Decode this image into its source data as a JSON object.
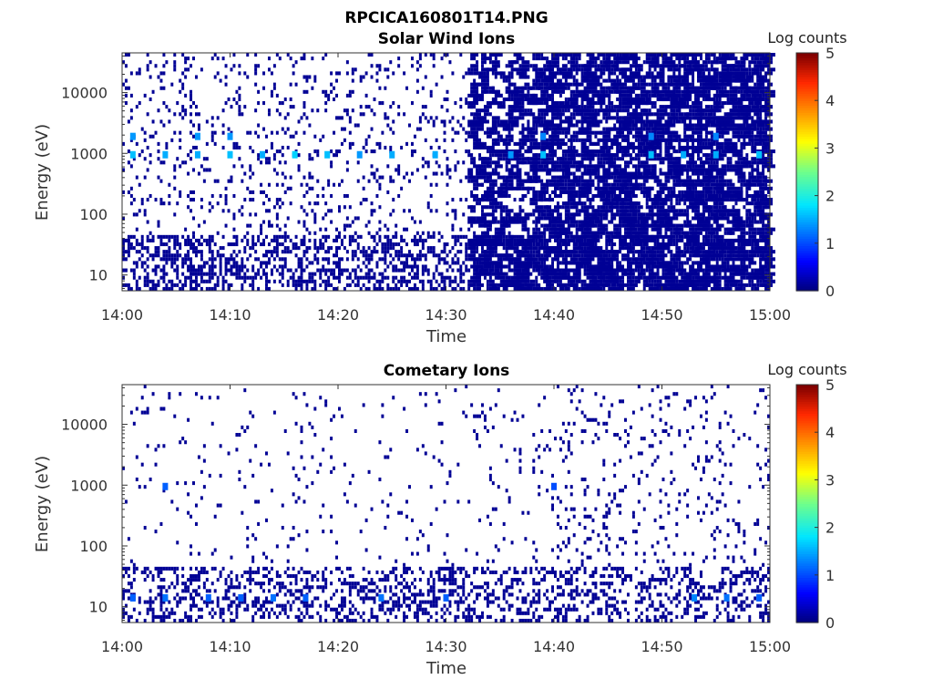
{
  "figure": {
    "title": "RPCICA160801T14.PNG"
  },
  "chart_data": [
    {
      "type": "heatmap",
      "title": "Solar Wind Ions",
      "xlabel": "Time",
      "ylabel": "Energy (eV)",
      "x_ticks": [
        "14:00",
        "14:10",
        "14:20",
        "14:30",
        "14:40",
        "14:50",
        "15:00"
      ],
      "xlim": [
        "14:00",
        "15:00"
      ],
      "y_ticks": [
        10,
        100,
        1000,
        10000
      ],
      "y_tick_labels": [
        "10",
        "100",
        "1000",
        "10000"
      ],
      "ylim": [
        5.5,
        45000
      ],
      "y_scale": "log",
      "colorbar": {
        "label": "Log counts",
        "ticks": [
          0,
          1,
          2,
          3,
          4,
          5
        ],
        "range": [
          0,
          5
        ],
        "colormap": "jet"
      },
      "background": "#ffffff",
      "grid": false,
      "density_by_time": [
        {
          "from": "14:00",
          "to": "14:32",
          "fraction": 0.13
        },
        {
          "from": "14:32",
          "to": "14:38",
          "fraction": 0.32
        },
        {
          "from": "14:38",
          "to": "15:00",
          "fraction": 0.52
        }
      ],
      "low_energy_band": {
        "below_eV": 50,
        "fraction": 0.45
      },
      "hotspots": [
        {
          "time": "14:01",
          "energy_eV": 950,
          "log_counts": 1.6
        },
        {
          "time": "14:04",
          "energy_eV": 950,
          "log_counts": 1.5
        },
        {
          "time": "14:07",
          "energy_eV": 950,
          "log_counts": 1.5
        },
        {
          "time": "14:10",
          "energy_eV": 950,
          "log_counts": 1.6
        },
        {
          "time": "14:13",
          "energy_eV": 950,
          "log_counts": 1.5
        },
        {
          "time": "14:16",
          "energy_eV": 950,
          "log_counts": 1.7
        },
        {
          "time": "14:19",
          "energy_eV": 950,
          "log_counts": 1.6
        },
        {
          "time": "14:22",
          "energy_eV": 950,
          "log_counts": 1.4
        },
        {
          "time": "14:25",
          "energy_eV": 950,
          "log_counts": 1.5
        },
        {
          "time": "14:29",
          "energy_eV": 950,
          "log_counts": 1.5
        },
        {
          "time": "14:36",
          "energy_eV": 950,
          "log_counts": 1.4
        },
        {
          "time": "14:39",
          "energy_eV": 950,
          "log_counts": 1.6
        },
        {
          "time": "14:49",
          "energy_eV": 950,
          "log_counts": 1.6
        },
        {
          "time": "14:52",
          "energy_eV": 950,
          "log_counts": 1.5
        },
        {
          "time": "14:55",
          "energy_eV": 950,
          "log_counts": 1.5
        },
        {
          "time": "14:59",
          "energy_eV": 950,
          "log_counts": 1.6
        },
        {
          "time": "14:01",
          "energy_eV": 1900,
          "log_counts": 1.4
        },
        {
          "time": "14:07",
          "energy_eV": 1900,
          "log_counts": 1.4
        },
        {
          "time": "14:10",
          "energy_eV": 1900,
          "log_counts": 1.4
        },
        {
          "time": "14:39",
          "energy_eV": 1900,
          "log_counts": 1.3
        },
        {
          "time": "14:49",
          "energy_eV": 1900,
          "log_counts": 1.3
        },
        {
          "time": "14:55",
          "energy_eV": 1900,
          "log_counts": 1.3
        }
      ]
    },
    {
      "type": "heatmap",
      "title": "Cometary Ions",
      "xlabel": "Time",
      "ylabel": "Energy (eV)",
      "x_ticks": [
        "14:00",
        "14:10",
        "14:20",
        "14:30",
        "14:40",
        "14:50",
        "15:00"
      ],
      "xlim": [
        "14:00",
        "15:00"
      ],
      "y_ticks": [
        10,
        100,
        1000,
        10000
      ],
      "y_tick_labels": [
        "10",
        "100",
        "1000",
        "10000"
      ],
      "ylim": [
        5.5,
        45000
      ],
      "y_scale": "log",
      "colorbar": {
        "label": "Log counts",
        "ticks": [
          0,
          1,
          2,
          3,
          4,
          5
        ],
        "range": [
          0,
          5
        ],
        "colormap": "jet"
      },
      "background": "#ffffff",
      "grid": false,
      "density_by_time": [
        {
          "from": "14:00",
          "to": "14:32",
          "fraction": 0.035
        },
        {
          "from": "14:32",
          "to": "14:38",
          "fraction": 0.06
        },
        {
          "from": "14:38",
          "to": "15:00",
          "fraction": 0.09
        }
      ],
      "low_energy_band": {
        "below_eV": 50,
        "fraction": 0.35
      },
      "hotspots": [
        {
          "time": "14:01",
          "energy_eV": 14,
          "log_counts": 1.1
        },
        {
          "time": "14:04",
          "energy_eV": 14,
          "log_counts": 1.2
        },
        {
          "time": "14:08",
          "energy_eV": 14,
          "log_counts": 1.1
        },
        {
          "time": "14:11",
          "energy_eV": 14,
          "log_counts": 1.1
        },
        {
          "time": "14:14",
          "energy_eV": 14,
          "log_counts": 1.2
        },
        {
          "time": "14:17",
          "energy_eV": 14,
          "log_counts": 1.1
        },
        {
          "time": "14:24",
          "energy_eV": 14,
          "log_counts": 1.2
        },
        {
          "time": "14:30",
          "energy_eV": 14,
          "log_counts": 1.1
        },
        {
          "time": "14:53",
          "energy_eV": 14,
          "log_counts": 1.3
        },
        {
          "time": "14:56",
          "energy_eV": 14,
          "log_counts": 1.2
        },
        {
          "time": "14:59",
          "energy_eV": 14,
          "log_counts": 1.1
        },
        {
          "time": "14:04",
          "energy_eV": 950,
          "log_counts": 1.1
        },
        {
          "time": "14:40",
          "energy_eV": 950,
          "log_counts": 1.0
        }
      ]
    }
  ]
}
